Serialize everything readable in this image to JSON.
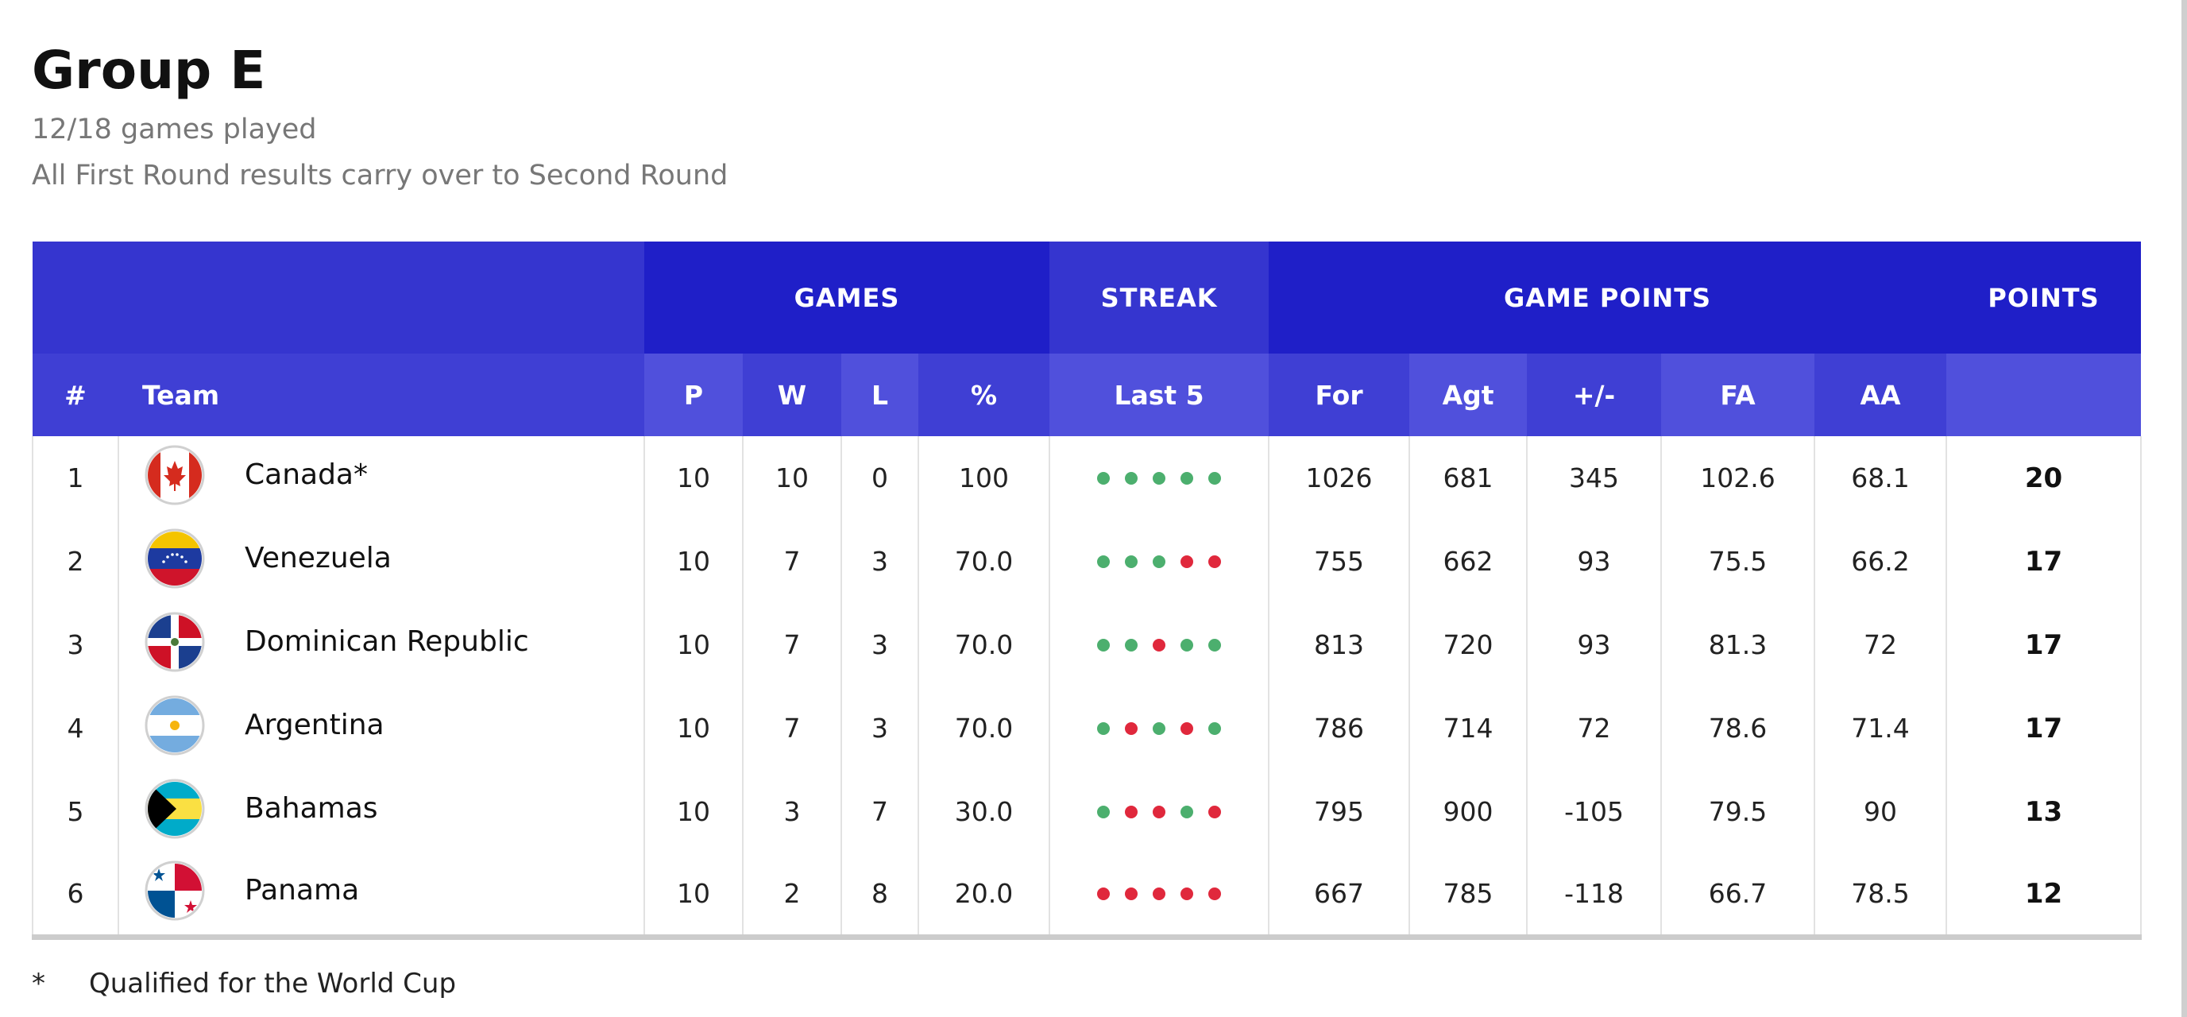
{
  "header": {
    "title": "Group E",
    "games_played": "12/18 games played",
    "note": "All First Round results carry over to Second Round"
  },
  "table": {
    "group_headers": {
      "games": "GAMES",
      "streak": "STREAK",
      "game_points": "GAME POINTS",
      "points": "POINTS"
    },
    "columns": {
      "rank": "#",
      "team": "Team",
      "played": "P",
      "won": "W",
      "lost": "L",
      "pct": "%",
      "last5": "Last 5",
      "for": "For",
      "agt": "Agt",
      "diff": "+/-",
      "fa": "FA",
      "aa": "AA"
    },
    "rows": [
      {
        "rank": "1",
        "team": "Canada*",
        "flag": "canada-flag-icon",
        "p": "10",
        "w": "10",
        "l": "0",
        "pct": "100",
        "streak": [
          "W",
          "W",
          "W",
          "W",
          "W"
        ],
        "for": "1026",
        "agt": "681",
        "diff": "345",
        "fa": "102.6",
        "aa": "68.1",
        "pts": "20"
      },
      {
        "rank": "2",
        "team": "Venezuela",
        "flag": "venezuela-flag-icon",
        "p": "10",
        "w": "7",
        "l": "3",
        "pct": "70.0",
        "streak": [
          "W",
          "W",
          "W",
          "L",
          "L"
        ],
        "for": "755",
        "agt": "662",
        "diff": "93",
        "fa": "75.5",
        "aa": "66.2",
        "pts": "17"
      },
      {
        "rank": "3",
        "team": "Dominican Republic",
        "flag": "dominican-republic-flag-icon",
        "p": "10",
        "w": "7",
        "l": "3",
        "pct": "70.0",
        "streak": [
          "W",
          "W",
          "L",
          "W",
          "W"
        ],
        "for": "813",
        "agt": "720",
        "diff": "93",
        "fa": "81.3",
        "aa": "72",
        "pts": "17"
      },
      {
        "rank": "4",
        "team": "Argentina",
        "flag": "argentina-flag-icon",
        "p": "10",
        "w": "7",
        "l": "3",
        "pct": "70.0",
        "streak": [
          "W",
          "L",
          "W",
          "L",
          "W"
        ],
        "for": "786",
        "agt": "714",
        "diff": "72",
        "fa": "78.6",
        "aa": "71.4",
        "pts": "17"
      },
      {
        "rank": "5",
        "team": "Bahamas",
        "flag": "bahamas-flag-icon",
        "p": "10",
        "w": "3",
        "l": "7",
        "pct": "30.0",
        "streak": [
          "W",
          "L",
          "L",
          "W",
          "L"
        ],
        "for": "795",
        "agt": "900",
        "diff": "-105",
        "fa": "79.5",
        "aa": "90",
        "pts": "13"
      },
      {
        "rank": "6",
        "team": "Panama",
        "flag": "panama-flag-icon",
        "p": "10",
        "w": "2",
        "l": "8",
        "pct": "20.0",
        "streak": [
          "L",
          "L",
          "L",
          "L",
          "L"
        ],
        "for": "667",
        "agt": "785",
        "diff": "-118",
        "fa": "66.7",
        "aa": "78.5",
        "pts": "12"
      }
    ]
  },
  "footnote": {
    "mark": "*",
    "text": "Qualified for the World Cup"
  },
  "colors": {
    "header_dark": "#1f1fc8",
    "header_mid": "#3535cf",
    "subheader": "#3f3fd4",
    "subheader_alt": "#5050dc",
    "win": "#4caf6e",
    "loss": "#e0283c"
  }
}
